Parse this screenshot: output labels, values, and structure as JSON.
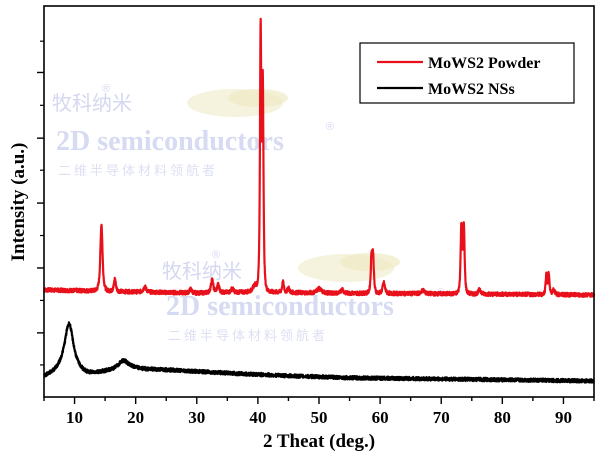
{
  "chart_data": {
    "type": "line",
    "title": "",
    "xlabel": "2 Theat (deg.)",
    "ylabel": "Intensity (a.u.)",
    "xlim": [
      5,
      95
    ],
    "ylim": [
      0,
      100
    ],
    "x_ticks": [
      10,
      20,
      30,
      40,
      50,
      60,
      70,
      80,
      90
    ],
    "x_minor_step": 5,
    "y_ticks_unlabeled": [
      16.4,
      33,
      49.6,
      66.2,
      83
    ],
    "y_minor_ticks": [
      8.2,
      24.7,
      41.3,
      58,
      74.6,
      91
    ],
    "grid": false,
    "legend": {
      "placement": "top-right",
      "entries": [
        {
          "label": "MoWS2 Powder",
          "color": "#e8101a"
        },
        {
          "label": "MoWS2 NSs",
          "color": "#000000"
        }
      ]
    },
    "series": [
      {
        "name": "MoWS2 Powder",
        "color": "#e8101a",
        "baseline": [
          [
            5,
            27.4
          ],
          [
            20,
            26.9
          ],
          [
            30,
            26.6
          ],
          [
            40,
            26.9
          ],
          [
            50,
            26.6
          ],
          [
            60,
            26.5
          ],
          [
            70,
            26.4
          ],
          [
            80,
            26.3
          ],
          [
            95,
            26.1
          ]
        ],
        "peaks": [
          {
            "x": 14.4,
            "height": 44.2,
            "width": 0.28
          },
          {
            "x": 16.6,
            "height": 30.2,
            "width": 0.25
          },
          {
            "x": 21.5,
            "height": 28.2,
            "width": 0.35
          },
          {
            "x": 29.0,
            "height": 27.6,
            "width": 0.3
          },
          {
            "x": 32.5,
            "height": 30.0,
            "width": 0.3
          },
          {
            "x": 33.5,
            "height": 28.7,
            "width": 0.3
          },
          {
            "x": 35.8,
            "height": 27.8,
            "width": 0.3
          },
          {
            "x": 39.5,
            "height": 28.5,
            "width": 0.5
          },
          {
            "x": 40.45,
            "height": 92.6,
            "width": 0.17
          },
          {
            "x": 40.8,
            "height": 79.0,
            "width": 0.18
          },
          {
            "x": 44.1,
            "height": 29.4,
            "width": 0.22
          },
          {
            "x": 45.0,
            "height": 28.0,
            "width": 0.22
          },
          {
            "x": 50.0,
            "height": 27.7,
            "width": 0.6
          },
          {
            "x": 53.8,
            "height": 27.6,
            "width": 0.3
          },
          {
            "x": 58.6,
            "height": 35.6,
            "width": 0.2
          },
          {
            "x": 58.85,
            "height": 35.2,
            "width": 0.2
          },
          {
            "x": 60.6,
            "height": 29.2,
            "width": 0.3
          },
          {
            "x": 67.0,
            "height": 27.3,
            "width": 0.4
          },
          {
            "x": 73.3,
            "height": 43.5,
            "width": 0.2
          },
          {
            "x": 73.7,
            "height": 43.2,
            "width": 0.2
          },
          {
            "x": 76.3,
            "height": 27.6,
            "width": 0.3
          },
          {
            "x": 87.2,
            "height": 31.5,
            "width": 0.18
          },
          {
            "x": 87.6,
            "height": 31.5,
            "width": 0.18
          },
          {
            "x": 88.4,
            "height": 27.5,
            "width": 0.3
          }
        ]
      },
      {
        "name": "MoWS2 NSs",
        "color": "#000000",
        "baseline": [
          [
            5,
            4.9
          ],
          [
            8,
            6.2
          ],
          [
            12,
            5.4
          ],
          [
            15,
            6.2
          ],
          [
            20,
            7.0
          ],
          [
            25,
            6.9
          ],
          [
            35,
            6.1
          ],
          [
            45,
            5.4
          ],
          [
            55,
            4.9
          ],
          [
            65,
            4.7
          ],
          [
            75,
            4.5
          ],
          [
            85,
            4.3
          ],
          [
            95,
            4.1
          ]
        ],
        "peaks": [
          {
            "x": 9.1,
            "height": 18.7,
            "width": 0.9
          },
          {
            "x": 18.0,
            "height": 9.2,
            "width": 1.1
          }
        ]
      }
    ]
  },
  "watermark": {
    "brand_cn": "牧科纳米",
    "brand_en": "2D semiconductors",
    "slogan_cn": "二维半导体材料领航者",
    "registered": "®"
  }
}
